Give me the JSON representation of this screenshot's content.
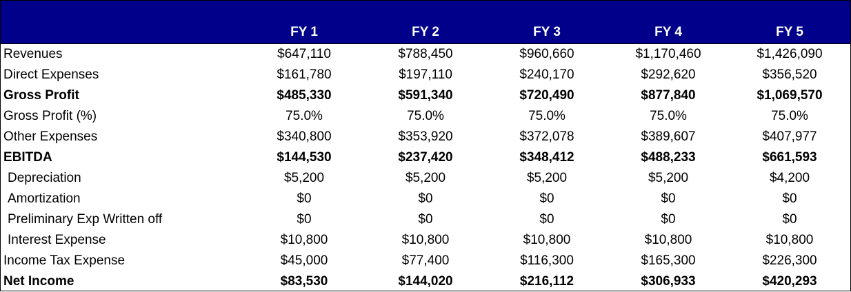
{
  "header": {
    "colors": {
      "band": "#00008b",
      "text": "#ffffff"
    },
    "years": [
      "FY 1",
      "FY 2",
      "FY 3",
      "FY 4",
      "FY 5"
    ]
  },
  "rows": [
    {
      "label": "Revenues",
      "bold": false,
      "indent": false,
      "values": [
        "$647,110",
        "$788,450",
        "$960,660",
        "$1,170,460",
        "$1,426,090"
      ]
    },
    {
      "label": "Direct Expenses",
      "bold": false,
      "indent": false,
      "values": [
        "$161,780",
        "$197,110",
        "$240,170",
        "$292,620",
        "$356,520"
      ]
    },
    {
      "label": "Gross Profit",
      "bold": true,
      "indent": false,
      "values": [
        "$485,330",
        "$591,340",
        "$720,490",
        "$877,840",
        "$1,069,570"
      ]
    },
    {
      "label": "Gross Profit (%)",
      "bold": false,
      "indent": false,
      "values": [
        "75.0%",
        "75.0%",
        "75.0%",
        "75.0%",
        "75.0%"
      ]
    },
    {
      "label": "Other Expenses",
      "bold": false,
      "indent": false,
      "values": [
        "$340,800",
        "$353,920",
        "$372,078",
        "$389,607",
        "$407,977"
      ]
    },
    {
      "label": "EBITDA",
      "bold": true,
      "indent": false,
      "values": [
        "$144,530",
        "$237,420",
        "$348,412",
        "$488,233",
        "$661,593"
      ]
    },
    {
      "label": "Depreciation",
      "bold": false,
      "indent": true,
      "values": [
        "$5,200",
        "$5,200",
        "$5,200",
        "$5,200",
        "$4,200"
      ]
    },
    {
      "label": "Amortization",
      "bold": false,
      "indent": true,
      "values": [
        "$0",
        "$0",
        "$0",
        "$0",
        "$0"
      ]
    },
    {
      "label": "Preliminary Exp Written off",
      "bold": false,
      "indent": true,
      "values": [
        "$0",
        "$0",
        "$0",
        "$0",
        "$0"
      ]
    },
    {
      "label": "Interest Expense",
      "bold": false,
      "indent": true,
      "values": [
        "$10,800",
        "$10,800",
        "$10,800",
        "$10,800",
        "$10,800"
      ]
    },
    {
      "label": "Income Tax Expense",
      "bold": false,
      "indent": false,
      "values": [
        "$45,000",
        "$77,400",
        "$116,300",
        "$165,300",
        "$226,300"
      ]
    },
    {
      "label": "Net Income",
      "bold": true,
      "indent": false,
      "values": [
        "$83,530",
        "$144,020",
        "$216,112",
        "$306,933",
        "$420,293"
      ]
    }
  ]
}
